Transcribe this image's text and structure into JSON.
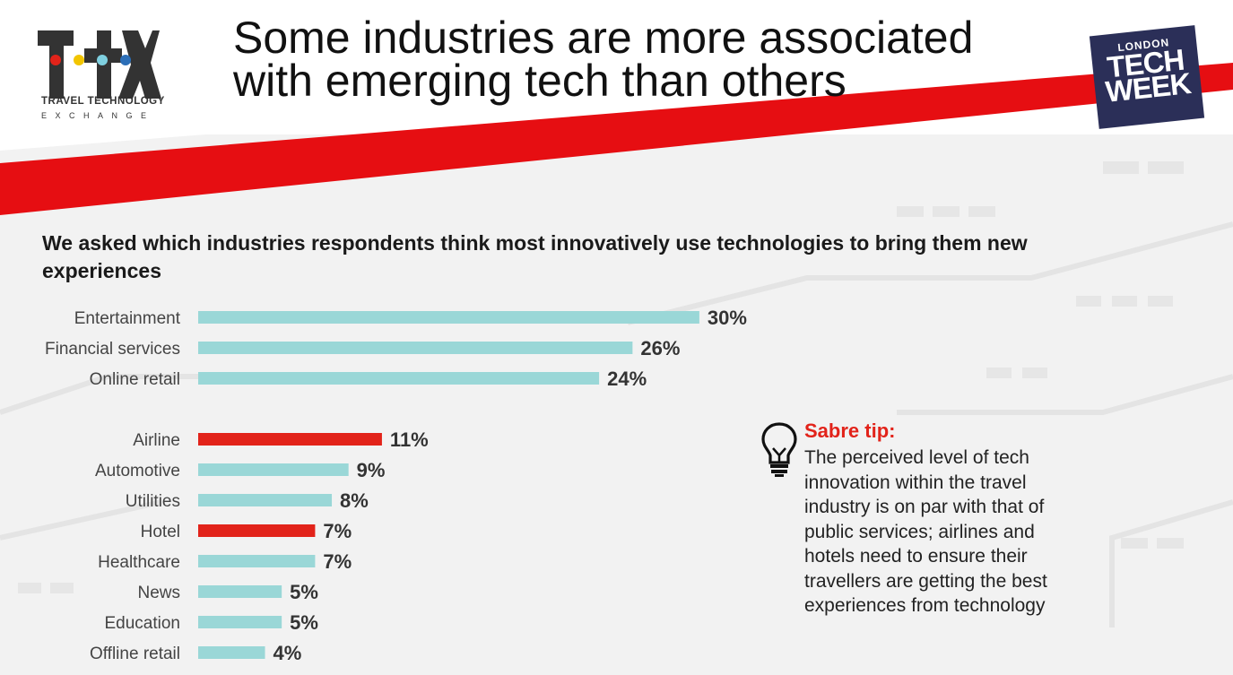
{
  "logo": {
    "mark": "ttx-logo",
    "line1": "TRAVEL TECHNOLOGY",
    "line2": "EXCHANGE"
  },
  "headline": {
    "line1": "Some industries are more associated",
    "line2": "with emerging tech than others"
  },
  "badge": {
    "line1": "LONDON",
    "line2": "TECH",
    "line3": "WEEK"
  },
  "question": "We asked which industries respondents think most innovatively use technologies to bring them new experiences",
  "colors": {
    "teal": "#9ad7d7",
    "red": "#e2231a",
    "navy": "#2b2f58"
  },
  "chart_data": {
    "type": "bar",
    "orientation": "horizontal",
    "categories": [
      "Entertainment",
      "Financial services",
      "Online retail",
      "Airline",
      "Automotive",
      "Utilities",
      "Hotel",
      "Healthcare",
      "News",
      "Education",
      "Offline retail"
    ],
    "values": [
      30,
      26,
      24,
      11,
      9,
      8,
      7,
      7,
      5,
      5,
      4
    ],
    "value_labels": [
      "30%",
      "26%",
      "24%",
      "11%",
      "9%",
      "8%",
      "7%",
      "7%",
      "5%",
      "5%",
      "4%"
    ],
    "highlight": [
      "Airline",
      "Hotel"
    ],
    "unit": "%"
  },
  "tip": {
    "icon": "lightbulb-icon",
    "title": "Sabre tip:",
    "lines": [
      "The perceived level of tech",
      "innovation within the travel",
      "industry is on par with that of",
      "public services; airlines and",
      "hotels need to ensure their",
      "travellers are getting the best",
      "experiences from technology"
    ]
  }
}
